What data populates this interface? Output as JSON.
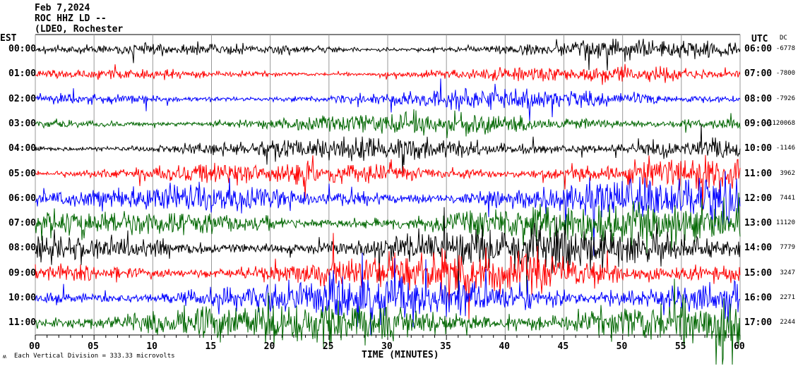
{
  "header": {
    "date": "Feb 7,2024",
    "station": "ROC HHZ LD --",
    "network": "(LDEO, Rochester"
  },
  "chart_data": {
    "type": "line",
    "title": "Feb 7,2024 ROC HHZ LD --",
    "xlabel": "TIME (MINUTES)",
    "xlim": [
      0,
      60
    ],
    "x_ticks": [
      "00",
      "05",
      "10",
      "15",
      "20",
      "25",
      "30",
      "35",
      "40",
      "45",
      "50",
      "55",
      "60"
    ],
    "left_axis_label": "EST",
    "right_axis_label": "UTC",
    "dc_label": "DC",
    "trace_colors": [
      "#000000",
      "#ff0000",
      "#0000ff",
      "#006600"
    ],
    "rows": [
      {
        "est": "00:00",
        "utc": "06:00",
        "dc": "-6778"
      },
      {
        "est": "01:00",
        "utc": "07:00",
        "dc": "-7800"
      },
      {
        "est": "02:00",
        "utc": "08:00",
        "dc": "-7926"
      },
      {
        "est": "03:00",
        "utc": "09:00",
        "dc": "-1120068"
      },
      {
        "est": "04:00",
        "utc": "10:00",
        "dc": "-1146"
      },
      {
        "est": "05:00",
        "utc": "11:00",
        "dc": "3962"
      },
      {
        "est": "06:00",
        "utc": "12:00",
        "dc": "7441"
      },
      {
        "est": "07:00",
        "utc": "13:00",
        "dc": "11120"
      },
      {
        "est": "08:00",
        "utc": "14:00",
        "dc": "7779"
      },
      {
        "est": "09:00",
        "utc": "15:00",
        "dc": "3247"
      },
      {
        "est": "10:00",
        "utc": "16:00",
        "dc": "2271"
      },
      {
        "est": "11:00",
        "utc": "17:00",
        "dc": "2244"
      }
    ],
    "scale_note": "Each Vertical Division = 333.33 microvolts"
  }
}
